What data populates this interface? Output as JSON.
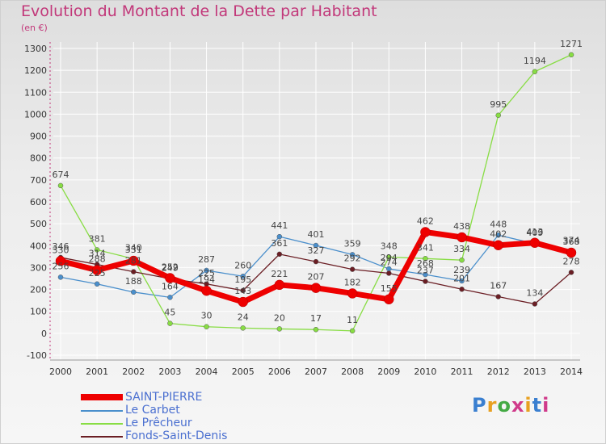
{
  "title": "Evolution du Montant de la Dette par Habitant",
  "unit_label": "(en €)",
  "logo": "Proxiti",
  "chart_data": {
    "type": "line",
    "title": "Evolution du Montant de la Dette par Habitant",
    "ylabel": "(en €)",
    "ylim": [
      -100,
      1300
    ],
    "yticks": [
      -100,
      0,
      100,
      200,
      300,
      400,
      500,
      600,
      700,
      800,
      900,
      1000,
      1100,
      1200,
      1300
    ],
    "x": [
      "2000",
      "2001",
      "2002",
      "2003",
      "2004",
      "2005",
      "2006",
      "2007",
      "2008",
      "2009",
      "2010",
      "2011",
      "2012",
      "2013",
      "2014"
    ],
    "grid": true,
    "legend_placement": "bottom-left",
    "series": [
      {
        "name": "SAINT-PIERRE",
        "color": "#ee0000",
        "values": [
          330,
          288,
          331,
          252,
          194,
          143,
          221,
          207,
          182,
          155,
          462,
          438,
          402,
          413,
          368
        ]
      },
      {
        "name": "Le Carbet",
        "color": "#4a8fcc",
        "values": [
          256,
          225,
          188,
          164,
          287,
          260,
          441,
          401,
          359,
          294,
          268,
          239,
          448,
          409,
          374
        ]
      },
      {
        "name": "Le Prêcheur",
        "color": "#88dd44",
        "values": [
          674,
          381,
          340,
          45,
          30,
          24,
          20,
          17,
          11,
          348,
          341,
          334,
          995,
          1194,
          1271
        ]
      },
      {
        "name": "Fonds-Saint-Denis",
        "color": "#6b1e24",
        "values": [
          346,
          314,
          281,
          249,
          225,
          195,
          361,
          327,
          292,
          274,
          237,
          201,
          167,
          134,
          278
        ]
      }
    ]
  }
}
